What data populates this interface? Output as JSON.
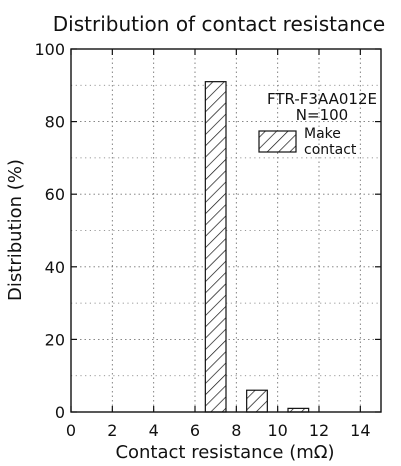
{
  "chart_data": {
    "type": "bar",
    "title": "Distribution of contact resistance",
    "xlabel": "Contact resistance (mΩ)",
    "ylabel": "Distribution (%)",
    "xlim": [
      0,
      15
    ],
    "ylim": [
      0,
      100
    ],
    "x_ticks": [
      0,
      2,
      4,
      6,
      8,
      10,
      12,
      14
    ],
    "y_ticks": [
      0,
      20,
      40,
      60,
      80,
      100
    ],
    "grid": true,
    "grid_style": "dotted",
    "bars": [
      {
        "x_start": 6.5,
        "x_end": 7.5,
        "value": 91
      },
      {
        "x_start": 8.5,
        "x_end": 9.5,
        "value": 6
      },
      {
        "x_start": 10.5,
        "x_end": 11.5,
        "value": 1
      }
    ],
    "series": [
      {
        "name": "Make contact",
        "pattern": "diagonal-hatch"
      }
    ],
    "annotations": [
      "FTR-F3AA012E",
      "N=100"
    ],
    "legend_label_lines": [
      "Make",
      "contact"
    ],
    "legend_position": "top-right",
    "colors": {
      "axis": "#111111",
      "grid": "#777777",
      "bar_fill": "#ffffff",
      "hatch": "#111111"
    }
  }
}
